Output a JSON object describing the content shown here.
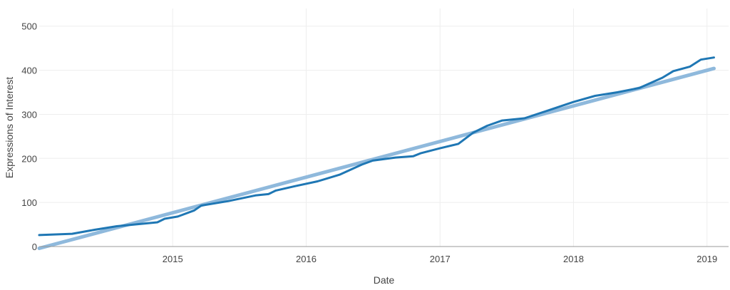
{
  "chart_data": {
    "type": "line",
    "title": "",
    "xlabel": "Date",
    "ylabel": "Expressions of Interest",
    "xlim": [
      "2014-01-01",
      "2019-03-01"
    ],
    "ylim": [
      0,
      540
    ],
    "xticks": [
      {
        "label": "2015",
        "date": "2015-01-01"
      },
      {
        "label": "2016",
        "date": "2016-01-01"
      },
      {
        "label": "2017",
        "date": "2017-01-01"
      },
      {
        "label": "2018",
        "date": "2018-01-01"
      },
      {
        "label": "2019",
        "date": "2019-01-01"
      }
    ],
    "yticks": [
      0,
      100,
      200,
      300,
      400,
      500
    ],
    "grid": true,
    "series": [
      {
        "color": "#1f77b4",
        "points": [
          {
            "x": "2014-01-01",
            "y": 26
          },
          {
            "x": "2014-04-01",
            "y": 29
          },
          {
            "x": "2014-06-01",
            "y": 38
          },
          {
            "x": "2014-08-01",
            "y": 46
          },
          {
            "x": "2014-11-20",
            "y": 55
          },
          {
            "x": "2014-12-10",
            "y": 63
          },
          {
            "x": "2015-01-15",
            "y": 68
          },
          {
            "x": "2015-03-01",
            "y": 82
          },
          {
            "x": "2015-03-20",
            "y": 93
          },
          {
            "x": "2015-06-01",
            "y": 103
          },
          {
            "x": "2015-08-15",
            "y": 116
          },
          {
            "x": "2015-09-20",
            "y": 119
          },
          {
            "x": "2015-10-10",
            "y": 127
          },
          {
            "x": "2015-12-01",
            "y": 137
          },
          {
            "x": "2016-02-01",
            "y": 148
          },
          {
            "x": "2016-04-01",
            "y": 163
          },
          {
            "x": "2016-06-01",
            "y": 186
          },
          {
            "x": "2016-07-01",
            "y": 195
          },
          {
            "x": "2016-09-01",
            "y": 202
          },
          {
            "x": "2016-10-20",
            "y": 205
          },
          {
            "x": "2016-11-10",
            "y": 212
          },
          {
            "x": "2017-01-01",
            "y": 223
          },
          {
            "x": "2017-02-20",
            "y": 233
          },
          {
            "x": "2017-04-01",
            "y": 258
          },
          {
            "x": "2017-05-10",
            "y": 274
          },
          {
            "x": "2017-06-20",
            "y": 286
          },
          {
            "x": "2017-08-20",
            "y": 291
          },
          {
            "x": "2017-11-01",
            "y": 311
          },
          {
            "x": "2018-01-01",
            "y": 328
          },
          {
            "x": "2018-03-01",
            "y": 342
          },
          {
            "x": "2018-05-01",
            "y": 350
          },
          {
            "x": "2018-07-01",
            "y": 360
          },
          {
            "x": "2018-09-01",
            "y": 383
          },
          {
            "x": "2018-10-01",
            "y": 398
          },
          {
            "x": "2018-11-15",
            "y": 408
          },
          {
            "x": "2018-12-15",
            "y": 424
          },
          {
            "x": "2019-01-20",
            "y": 429
          }
        ]
      },
      {
        "color": "#8fb9dc",
        "points": [
          {
            "x": "2014-01-01",
            "y": -4
          },
          {
            "x": "2019-01-20",
            "y": 404
          }
        ]
      }
    ]
  }
}
